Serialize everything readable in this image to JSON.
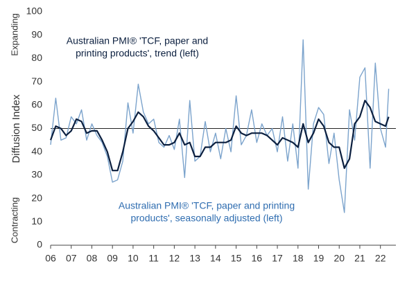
{
  "chart_data": {
    "type": "line",
    "ylabel": "Diffusion Index",
    "side_labels": {
      "top": "Expanding",
      "bottom": "Contracting"
    },
    "annotations": [
      {
        "lines": [
          "Australian PMI® 'TCF, paper and",
          "printing products', trend (left)"
        ],
        "color": "#0b1f3f"
      },
      {
        "lines": [
          "Australian PMI® 'TCF, paper and printing",
          "products', seasonally adjusted (left)"
        ],
        "color": "#2f6db0"
      }
    ],
    "reference_line": 50,
    "xlim": [
      6,
      22.75
    ],
    "xticks": [
      {
        "value": 6,
        "label": "06"
      },
      {
        "value": 7,
        "label": "07"
      },
      {
        "value": 8,
        "label": "08"
      },
      {
        "value": 9,
        "label": "09"
      },
      10,
      11,
      12,
      13,
      14,
      15,
      16,
      17,
      18,
      19,
      20,
      21,
      22
    ],
    "ylim": [
      0,
      100
    ],
    "yticks": [
      0,
      10,
      20,
      30,
      40,
      50,
      60,
      70,
      80,
      90,
      100
    ],
    "series": [
      {
        "name": "seasonally adjusted",
        "color": "#7ba3cc",
        "width": 1.4,
        "x": [
          6,
          6.25,
          6.5,
          6.75,
          7,
          7.25,
          7.5,
          7.75,
          8,
          8.25,
          8.5,
          8.75,
          9,
          9.25,
          9.5,
          9.75,
          10,
          10.25,
          10.5,
          10.75,
          11,
          11.25,
          11.5,
          11.75,
          12,
          12.25,
          12.5,
          12.75,
          13,
          13.25,
          13.5,
          13.75,
          14,
          14.25,
          14.5,
          14.75,
          15,
          15.25,
          15.5,
          15.75,
          16,
          16.25,
          16.5,
          16.75,
          17,
          17.25,
          17.5,
          17.75,
          18,
          18.25,
          18.5,
          18.75,
          19,
          19.25,
          19.5,
          19.75,
          20,
          20.25,
          20.5,
          20.75,
          21,
          21.25,
          21.5,
          21.75,
          22,
          22.25,
          22.4
        ],
        "values": [
          43,
          63,
          45,
          46,
          55,
          52,
          58,
          45,
          52,
          47,
          44,
          38,
          27,
          28,
          36,
          61,
          48,
          69,
          57,
          52,
          54,
          44,
          42,
          47,
          41,
          54,
          29,
          62,
          36,
          38,
          53,
          40,
          48,
          37,
          50,
          40,
          64,
          43,
          47,
          58,
          44,
          52,
          47,
          50,
          40,
          55,
          36,
          52,
          33,
          88,
          24,
          52,
          59,
          56,
          35,
          48,
          28,
          14,
          58,
          45,
          72,
          76,
          33,
          78,
          50,
          42,
          67
        ]
      },
      {
        "name": "trend",
        "color": "#0b1f3f",
        "width": 2.2,
        "x": [
          6,
          6.25,
          6.5,
          6.75,
          7,
          7.25,
          7.5,
          7.75,
          8,
          8.25,
          8.5,
          8.75,
          9,
          9.25,
          9.5,
          9.75,
          10,
          10.25,
          10.5,
          10.75,
          11,
          11.25,
          11.5,
          11.75,
          12,
          12.25,
          12.5,
          12.75,
          13,
          13.25,
          13.5,
          13.75,
          14,
          14.25,
          14.5,
          14.75,
          15,
          15.25,
          15.5,
          15.75,
          16,
          16.25,
          16.5,
          16.75,
          17,
          17.25,
          17.5,
          17.75,
          18,
          18.25,
          18.5,
          18.75,
          19,
          19.25,
          19.5,
          19.75,
          20,
          20.25,
          20.5,
          20.75,
          21,
          21.25,
          21.5,
          21.75,
          22,
          22.25,
          22.4
        ],
        "values": [
          45,
          51,
          50,
          47,
          49,
          54,
          53,
          48,
          49,
          49,
          45,
          40,
          32,
          32,
          40,
          50,
          53,
          57,
          55,
          51,
          49,
          46,
          43,
          43,
          44,
          48,
          43,
          44,
          38,
          38,
          42,
          42,
          44,
          44,
          44,
          45,
          51,
          48,
          47,
          48,
          48,
          48,
          47,
          45,
          43,
          46,
          45,
          44,
          42,
          52,
          44,
          48,
          54,
          51,
          44,
          42,
          42,
          33,
          37,
          52,
          55,
          62,
          59,
          53,
          52,
          51,
          55
        ]
      }
    ]
  }
}
